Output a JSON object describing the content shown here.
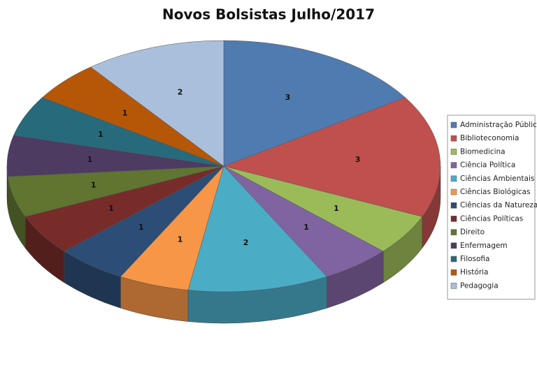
{
  "chart_data": {
    "type": "pie3d",
    "title": "Novos Bolsistas Julho/2017",
    "categories": [
      "Administração Pública",
      "Biblioteconomia",
      "Biomedicina",
      "Ciência Política",
      "Ciências Ambientais",
      "Ciências Biológicas",
      "Ciências da Natureza",
      "Ciências Políticas",
      "Direito",
      "Enfermagem",
      "Filosofia",
      "História",
      "Pedagogia"
    ],
    "values": [
      3,
      3,
      1,
      1,
      2,
      1,
      1,
      1,
      1,
      1,
      1,
      1,
      2
    ],
    "colors": [
      "#4f7bb0",
      "#c0504d",
      "#9bbb59",
      "#8064a2",
      "#4bacc6",
      "#f79646",
      "#2c4d75",
      "#772c2a",
      "#5f7530",
      "#4d3b62",
      "#276a7c",
      "#b65708",
      "#a9bfdc"
    ],
    "legend": "right"
  }
}
